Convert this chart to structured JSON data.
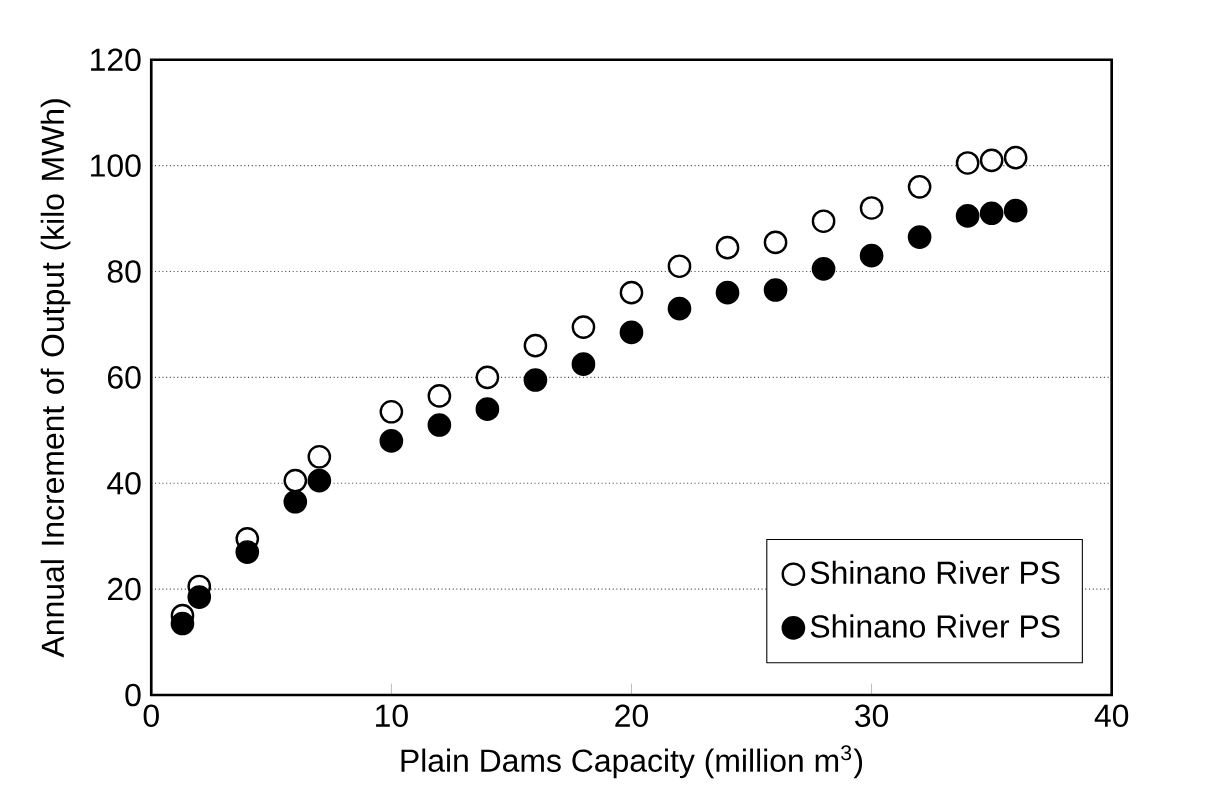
{
  "chart_data": {
    "type": "scatter",
    "xlabel": "Plain Dams Capacity (million m$^{3}$)",
    "ylabel": "Annual Increment of Output (kilo MWh)",
    "x": [
      1.3,
      2,
      4,
      6,
      7,
      10,
      12,
      14,
      16,
      18,
      20,
      22,
      24,
      26,
      28,
      30,
      32,
      34,
      35,
      36
    ],
    "series": [
      {
        "name": "Shinano River PS",
        "color": "#ffffff",
        "values": [
          15,
          20.5,
          29.5,
          40.5,
          45,
          53.5,
          56.5,
          60,
          66,
          69.5,
          76,
          81,
          84.5,
          85.5,
          89.5,
          92,
          96,
          100.5,
          101,
          101.5
        ]
      },
      {
        "name": "Shinano River PS",
        "color": "#000000",
        "values": [
          13.5,
          18.5,
          27,
          36.5,
          40.5,
          48,
          51,
          54,
          59.5,
          62.5,
          68.5,
          73,
          76,
          76.5,
          80.5,
          83,
          86.5,
          90.5,
          91,
          91.5
        ]
      }
    ],
    "xlim": [
      0,
      40
    ],
    "ylim": [
      0,
      120
    ],
    "xticks": [
      0,
      10,
      20,
      30,
      40
    ],
    "yticks": [
      0,
      20,
      40,
      60,
      80,
      100,
      120
    ],
    "grid": "y",
    "legend": "bottom right",
    "marker": "circle"
  }
}
